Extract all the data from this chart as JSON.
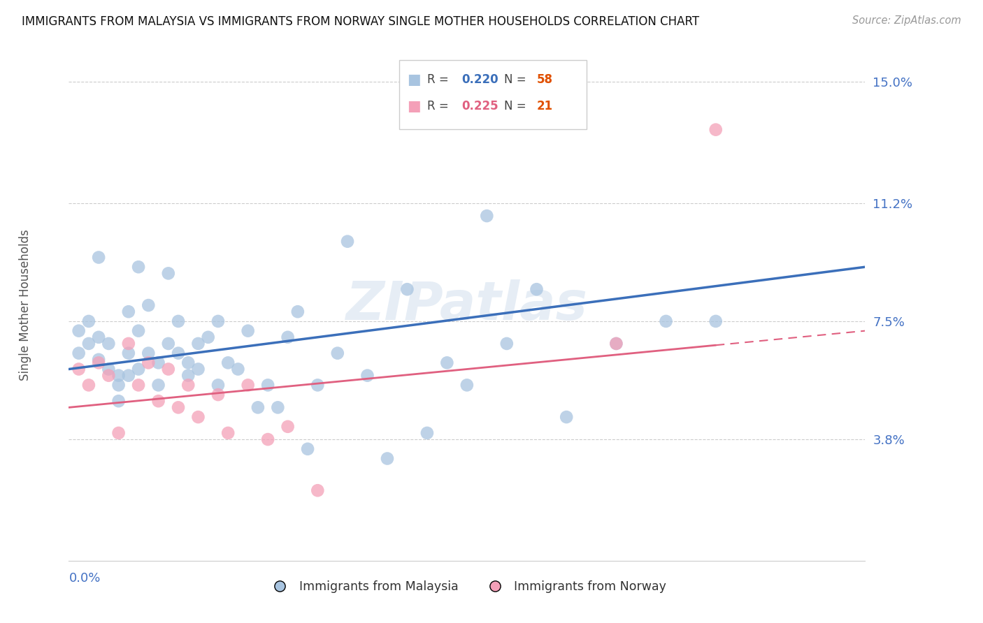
{
  "title": "IMMIGRANTS FROM MALAYSIA VS IMMIGRANTS FROM NORWAY SINGLE MOTHER HOUSEHOLDS CORRELATION CHART",
  "source": "Source: ZipAtlas.com",
  "ylabel": "Single Mother Households",
  "y_ticks": [
    0.0,
    0.038,
    0.075,
    0.112,
    0.15
  ],
  "y_tick_labels": [
    "",
    "3.8%",
    "7.5%",
    "11.2%",
    "15.0%"
  ],
  "x_range": [
    0.0,
    0.08
  ],
  "y_range": [
    0.0,
    0.16
  ],
  "label1": "Immigrants from Malaysia",
  "label2": "Immigrants from Norway",
  "color1": "#a8c4e0",
  "color2": "#f4a0b8",
  "line_color1": "#3b6fba",
  "line_color2": "#e06080",
  "watermark": "ZIPatlas",
  "malaysia_x": [
    0.001,
    0.001,
    0.002,
    0.002,
    0.003,
    0.003,
    0.003,
    0.004,
    0.004,
    0.005,
    0.005,
    0.005,
    0.006,
    0.006,
    0.006,
    0.007,
    0.007,
    0.007,
    0.008,
    0.008,
    0.009,
    0.009,
    0.01,
    0.01,
    0.011,
    0.011,
    0.012,
    0.012,
    0.013,
    0.013,
    0.014,
    0.015,
    0.015,
    0.016,
    0.017,
    0.018,
    0.019,
    0.02,
    0.021,
    0.022,
    0.023,
    0.024,
    0.025,
    0.027,
    0.028,
    0.03,
    0.032,
    0.034,
    0.036,
    0.038,
    0.04,
    0.042,
    0.044,
    0.047,
    0.05,
    0.055,
    0.06,
    0.065
  ],
  "malaysia_y": [
    0.072,
    0.065,
    0.068,
    0.075,
    0.063,
    0.07,
    0.095,
    0.06,
    0.068,
    0.055,
    0.058,
    0.05,
    0.078,
    0.058,
    0.065,
    0.092,
    0.06,
    0.072,
    0.08,
    0.065,
    0.062,
    0.055,
    0.09,
    0.068,
    0.065,
    0.075,
    0.062,
    0.058,
    0.06,
    0.068,
    0.07,
    0.055,
    0.075,
    0.062,
    0.06,
    0.072,
    0.048,
    0.055,
    0.048,
    0.07,
    0.078,
    0.035,
    0.055,
    0.065,
    0.1,
    0.058,
    0.032,
    0.085,
    0.04,
    0.062,
    0.055,
    0.108,
    0.068,
    0.085,
    0.045,
    0.068,
    0.075,
    0.075
  ],
  "norway_x": [
    0.001,
    0.002,
    0.003,
    0.004,
    0.005,
    0.006,
    0.007,
    0.008,
    0.009,
    0.01,
    0.011,
    0.012,
    0.013,
    0.015,
    0.016,
    0.018,
    0.02,
    0.022,
    0.025,
    0.055,
    0.065
  ],
  "norway_y": [
    0.06,
    0.055,
    0.062,
    0.058,
    0.04,
    0.068,
    0.055,
    0.062,
    0.05,
    0.06,
    0.048,
    0.055,
    0.045,
    0.052,
    0.04,
    0.055,
    0.038,
    0.042,
    0.022,
    0.068,
    0.135
  ],
  "trend1_x0": 0.0,
  "trend1_y0": 0.06,
  "trend1_x1": 0.08,
  "trend1_y1": 0.092,
  "trend2_x0": 0.0,
  "trend2_y0": 0.048,
  "trend2_x1": 0.08,
  "trend2_y1": 0.072,
  "trend2_solid_end": 0.065
}
